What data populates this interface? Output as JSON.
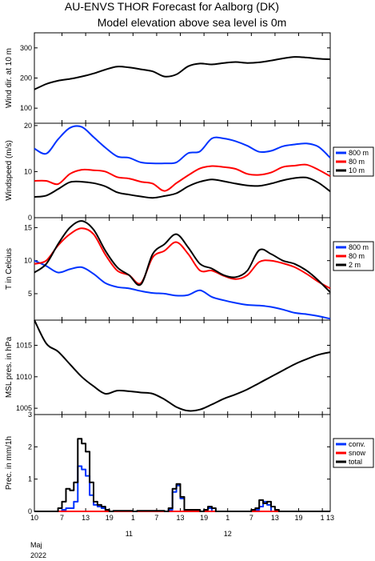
{
  "title_line1": "AU-ENVS THOR Forecast for Aalborg (DK)",
  "title_line2": "Model elevation above sea level is    0m",
  "time_axis": {
    "start_hour": 0,
    "end_hour": 75,
    "tick_labels": [
      {
        "hour": 0,
        "label": "10"
      },
      {
        "hour": 7,
        "label": "7"
      },
      {
        "hour": 13,
        "label": "13"
      },
      {
        "hour": 19,
        "label": "19"
      },
      {
        "hour": 25,
        "label": "1"
      },
      {
        "hour": 31,
        "label": "7"
      },
      {
        "hour": 37,
        "label": "13"
      },
      {
        "hour": 43,
        "label": "19"
      },
      {
        "hour": 49,
        "label": "1"
      },
      {
        "hour": 55,
        "label": "7"
      },
      {
        "hour": 61,
        "label": "13"
      },
      {
        "hour": 67,
        "label": "19"
      },
      {
        "hour": 73,
        "label": "1"
      },
      {
        "hour": 75,
        "label": "13"
      }
    ],
    "day_labels": [
      {
        "hour": 24,
        "label": "11"
      },
      {
        "hour": 49,
        "label": "12"
      }
    ],
    "month_label": "Maj",
    "year_label": "2022"
  },
  "chart_data": [
    {
      "type": "line",
      "id": "wind-direction",
      "ylabel": "Wind dir. at 10 m",
      "ylim": [
        50,
        350
      ],
      "yticks": [
        100,
        200,
        300
      ],
      "x": [
        0,
        3,
        6,
        9,
        12,
        15,
        18,
        21,
        24,
        27,
        30,
        33,
        36,
        39,
        42,
        45,
        48,
        51,
        54,
        57,
        60,
        63,
        66,
        69,
        72,
        75
      ],
      "series": [
        {
          "color": "#000000",
          "values": [
            162,
            180,
            191,
            197,
            205,
            215,
            228,
            238,
            235,
            229,
            222,
            205,
            212,
            239,
            248,
            245,
            250,
            253,
            250,
            252,
            258,
            265,
            270,
            268,
            264,
            262
          ]
        }
      ]
    },
    {
      "type": "line",
      "id": "windspeed",
      "ylabel": "Windspeed (m/s)",
      "ylim": [
        0,
        20.5
      ],
      "yticks": [
        0,
        10,
        20
      ],
      "x": [
        0,
        3,
        6,
        9,
        12,
        15,
        18,
        21,
        24,
        27,
        30,
        33,
        36,
        39,
        42,
        45,
        48,
        51,
        54,
        57,
        60,
        63,
        66,
        69,
        72,
        75
      ],
      "series": [
        {
          "name": "800 m",
          "color": "#0033ff",
          "values": [
            15.0,
            13.9,
            17.0,
            19.5,
            19.7,
            17.5,
            15.2,
            13.3,
            13.0,
            12.0,
            11.8,
            11.8,
            12.0,
            14.0,
            14.4,
            17.2,
            17.2,
            16.6,
            15.6,
            14.3,
            14.5,
            15.5,
            15.9,
            16.1,
            15.4,
            13.0
          ]
        },
        {
          "name": "80 m",
          "color": "#ff0000",
          "values": [
            8.0,
            8.0,
            7.3,
            9.5,
            10.4,
            10.3,
            10.0,
            8.8,
            8.5,
            7.8,
            7.4,
            5.8,
            7.5,
            9.2,
            10.7,
            11.2,
            11.0,
            10.6,
            9.5,
            9.3,
            9.8,
            11.0,
            11.3,
            11.5,
            10.4,
            9.0
          ]
        },
        {
          "name": "10 m",
          "color": "#000000",
          "values": [
            4.5,
            4.8,
            6.2,
            7.7,
            7.8,
            7.5,
            6.8,
            5.5,
            5.0,
            4.6,
            4.3,
            4.7,
            5.3,
            6.8,
            7.8,
            8.3,
            7.9,
            7.4,
            7.0,
            6.9,
            7.4,
            8.1,
            8.6,
            8.7,
            7.6,
            5.7
          ]
        }
      ],
      "legend": "right"
    },
    {
      "type": "line",
      "id": "temperature",
      "ylabel": "T in Celcius",
      "ylim": [
        1,
        16.5
      ],
      "yticks": [
        5,
        10,
        15
      ],
      "x": [
        0,
        3,
        6,
        9,
        12,
        15,
        18,
        21,
        24,
        27,
        30,
        33,
        36,
        39,
        42,
        45,
        48,
        51,
        54,
        57,
        60,
        63,
        66,
        69,
        72,
        75
      ],
      "series": [
        {
          "name": "800 m",
          "color": "#0033ff",
          "values": [
            10.0,
            9.2,
            8.2,
            8.7,
            9.0,
            8.0,
            6.6,
            6.0,
            5.8,
            5.4,
            5.1,
            5.0,
            4.7,
            4.8,
            5.5,
            4.5,
            4.0,
            3.6,
            3.3,
            3.2,
            3.0,
            2.6,
            2.1,
            1.9,
            1.6,
            1.2
          ]
        },
        {
          "name": "80 m",
          "color": "#ff0000",
          "values": [
            9.5,
            10.0,
            12.3,
            14.0,
            14.9,
            14.0,
            10.9,
            8.5,
            7.8,
            6.6,
            10.5,
            11.5,
            12.8,
            11.0,
            8.5,
            8.5,
            7.7,
            7.2,
            7.8,
            9.8,
            10.0,
            9.6,
            9.0,
            8.0,
            6.8,
            5.8
          ]
        },
        {
          "name": "2 m",
          "color": "#000000",
          "values": [
            8.2,
            9.5,
            12.5,
            15.0,
            16.0,
            14.7,
            11.5,
            9.0,
            7.8,
            6.4,
            11.0,
            12.5,
            14.0,
            12.0,
            9.5,
            8.8,
            7.8,
            7.5,
            8.5,
            11.6,
            11.0,
            10.0,
            9.5,
            8.5,
            7.0,
            5.2
          ]
        }
      ],
      "legend": "right"
    },
    {
      "type": "line",
      "id": "pressure",
      "ylabel": "MSL pres. in hPa",
      "ylim": [
        1004,
        1019
      ],
      "yticks": [
        1005,
        1010,
        1015
      ],
      "x": [
        0,
        3,
        6,
        9,
        12,
        15,
        18,
        21,
        24,
        27,
        30,
        33,
        36,
        39,
        42,
        45,
        48,
        51,
        54,
        57,
        60,
        63,
        66,
        69,
        72,
        75
      ],
      "series": [
        {
          "color": "#000000",
          "values": [
            1019.0,
            1015.3,
            1014.0,
            1012.0,
            1010.0,
            1008.5,
            1007.3,
            1007.8,
            1007.7,
            1007.5,
            1007.3,
            1006.4,
            1005.2,
            1004.6,
            1004.8,
            1005.6,
            1006.5,
            1007.2,
            1008.0,
            1009.0,
            1010.0,
            1011.0,
            1012.0,
            1012.8,
            1013.5,
            1013.9
          ]
        }
      ]
    },
    {
      "type": "line",
      "id": "precipitation",
      "ylabel": "Prec. in mm/1h",
      "ylim": [
        0,
        3
      ],
      "yticks": [
        0,
        1,
        2,
        3
      ],
      "step": true,
      "x": [
        0,
        6,
        7,
        8,
        9,
        10,
        11,
        12,
        13,
        14,
        15,
        16,
        17,
        18,
        19,
        20,
        25,
        26,
        33,
        34,
        35,
        36,
        37,
        38,
        42,
        43,
        44,
        45,
        46,
        54,
        55,
        56,
        57,
        58,
        59,
        60,
        61,
        62,
        75
      ],
      "series": [
        {
          "name": "conv.",
          "color": "#0033ff",
          "values": [
            0,
            0,
            0.05,
            0.1,
            0.1,
            0.3,
            1.4,
            1.3,
            1.1,
            0.5,
            0.2,
            0.15,
            0.1,
            0,
            0,
            0,
            0,
            0,
            0,
            0.05,
            0.6,
            0.8,
            0.4,
            0,
            0,
            0.05,
            0.1,
            0,
            0,
            0,
            0,
            0.05,
            0.15,
            0.3,
            0.2,
            0,
            0,
            0,
            0
          ]
        },
        {
          "name": "snow",
          "color": "#ff0000",
          "values": [
            0,
            0,
            0,
            0,
            0,
            0,
            0,
            0,
            0,
            0,
            0,
            0,
            0,
            0,
            0,
            0,
            0,
            0,
            0,
            0,
            0,
            0,
            0,
            0,
            0,
            0,
            0,
            0,
            0,
            0,
            0,
            0,
            0,
            0,
            0,
            0,
            0,
            0,
            0
          ]
        },
        {
          "name": "total",
          "color": "#000000",
          "values": [
            0,
            0.1,
            0.3,
            0.7,
            0.65,
            0.9,
            2.25,
            2.1,
            1.85,
            0.9,
            0.3,
            0.2,
            0.15,
            0.05,
            0,
            0.02,
            0,
            0.02,
            0,
            0.1,
            0.7,
            0.85,
            0.45,
            0.05,
            0,
            0.05,
            0.15,
            0.1,
            0,
            0,
            0.05,
            0.1,
            0.35,
            0.25,
            0.3,
            0.15,
            0.05,
            0,
            0
          ]
        }
      ],
      "legend": "right"
    }
  ]
}
